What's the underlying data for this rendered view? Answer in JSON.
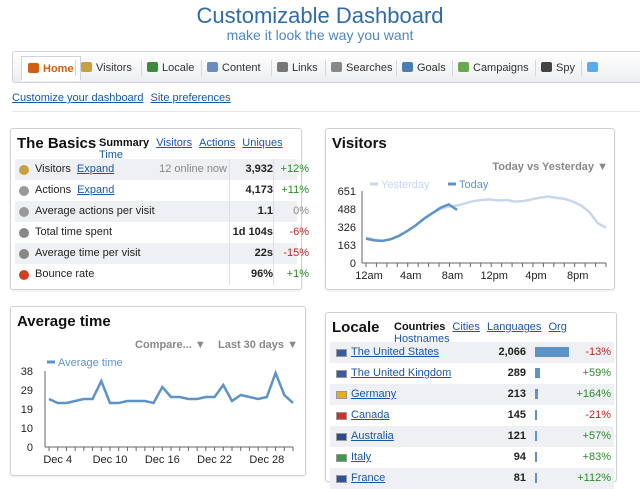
{
  "header": {
    "title": "Customizable Dashboard",
    "subtitle": "make it look the way you want"
  },
  "nav": {
    "tabs": [
      {
        "label": "Home",
        "icon": "home-icon",
        "color": "#d35e10"
      },
      {
        "label": "Visitors",
        "icon": "visitors-icon",
        "color": "#c8a040"
      },
      {
        "label": "Locale",
        "icon": "globe-icon",
        "color": "#3c8a3c"
      },
      {
        "label": "Content",
        "icon": "page-icon",
        "color": "#6c8cc0"
      },
      {
        "label": "Links",
        "icon": "link-icon",
        "color": "#777777"
      },
      {
        "label": "Searches",
        "icon": "search-icon",
        "color": "#888888"
      },
      {
        "label": "Goals",
        "icon": "goals-icon",
        "color": "#4b7fb4"
      },
      {
        "label": "Campaigns",
        "icon": "campaigns-icon",
        "color": "#6aa84f"
      },
      {
        "label": "Spy",
        "icon": "eye-icon",
        "color": "#444444"
      },
      {
        "label": "",
        "icon": "twitter-icon",
        "color": "#55acee"
      }
    ]
  },
  "links": {
    "customize": "Customize your dashboard",
    "prefs": "Site preferences"
  },
  "basics": {
    "title": "The Basics",
    "tabs": [
      "Summary",
      "Visitors",
      "Actions",
      "Uniques",
      "Time"
    ],
    "rows": [
      {
        "label": "Visitors",
        "expand": "Expand",
        "online": "12 online now",
        "value": "3,932",
        "change": "+12%",
        "icon_color": "#c8a040"
      },
      {
        "label": "Actions",
        "expand": "Expand",
        "online": "",
        "value": "4,173",
        "change": "+11%",
        "icon_color": "#999999"
      },
      {
        "label": "Average actions per visit",
        "expand": "",
        "online": "",
        "value": "1.1",
        "change": "0%",
        "icon_color": "#999999"
      },
      {
        "label": "Total time spent",
        "expand": "",
        "online": "",
        "value": "1d 104s",
        "change": "-6%",
        "icon_color": "#888888"
      },
      {
        "label": "Average time per visit",
        "expand": "",
        "online": "",
        "value": "22s",
        "change": "-15%",
        "icon_color": "#888888"
      },
      {
        "label": "Bounce rate",
        "expand": "",
        "online": "",
        "value": "96%",
        "change": "+1%",
        "icon_color": "#d04020"
      }
    ]
  },
  "visitors": {
    "title": "Visitors",
    "dropdown": "Today vs Yesterday",
    "legend": [
      "Yesterday",
      "Today"
    ],
    "yticks": [
      "651",
      "488",
      "326",
      "163",
      "0"
    ],
    "xticks": [
      "12am",
      "4am",
      "8am",
      "12pm",
      "4pm",
      "8pm"
    ],
    "chart_data": {
      "type": "line",
      "ylim": [
        0,
        651
      ],
      "series": [
        {
          "name": "Yesterday",
          "color": "#c8d6ee",
          "values": [
            230,
            210,
            200,
            215,
            250,
            290,
            340,
            400,
            450,
            490,
            510,
            520,
            540,
            560,
            570,
            575,
            565,
            570,
            555,
            560,
            575,
            590,
            600,
            590,
            580,
            555,
            520,
            460,
            360,
            320
          ]
        },
        {
          "name": "Today",
          "color": "#5e93c8",
          "values": [
            220,
            205,
            200,
            215,
            245,
            290,
            340,
            400,
            450,
            500,
            530,
            480
          ]
        }
      ]
    }
  },
  "avgtime": {
    "title": "Average time",
    "compare": "Compare...",
    "range": "Last 30 days",
    "legend": "Average time",
    "yticks": [
      "38",
      "29",
      "19",
      "10",
      "0"
    ],
    "xticks": [
      "Dec 4",
      "Dec 10",
      "Dec 16",
      "Dec 22",
      "Dec 28"
    ],
    "chart_data": {
      "type": "line",
      "ylim": [
        0,
        38
      ],
      "series": [
        {
          "name": "Average time",
          "color": "#5e93c8",
          "values": [
            24,
            22,
            22,
            23,
            24,
            24,
            33,
            22,
            22,
            23,
            23,
            23,
            22,
            30,
            25,
            25,
            24,
            24,
            25,
            25,
            31,
            23,
            26,
            25,
            24,
            25,
            37,
            26,
            22
          ]
        }
      ]
    }
  },
  "locale": {
    "title": "Locale",
    "tabs": [
      "Countries",
      "Cities",
      "Languages",
      "Org",
      "Hostnames"
    ],
    "rows": [
      {
        "country": "The United States",
        "value": "2,066",
        "share": 1.0,
        "change": "-13%",
        "flag": "#3c5aa0"
      },
      {
        "country": "The United Kingdom",
        "value": "289",
        "share": 0.14,
        "change": "+59%",
        "flag": "#3c5aa0"
      },
      {
        "country": "Germany",
        "value": "213",
        "share": 0.1,
        "change": "+164%",
        "flag": "#e0b020"
      },
      {
        "country": "Canada",
        "value": "145",
        "share": 0.07,
        "change": "-21%",
        "flag": "#d03030"
      },
      {
        "country": "Australia",
        "value": "121",
        "share": 0.06,
        "change": "+57%",
        "flag": "#2a4a90"
      },
      {
        "country": "Italy",
        "value": "94",
        "share": 0.05,
        "change": "+83%",
        "flag": "#3c9a4c"
      },
      {
        "country": "France",
        "value": "81",
        "share": 0.04,
        "change": "+112%",
        "flag": "#3050a0"
      }
    ]
  }
}
